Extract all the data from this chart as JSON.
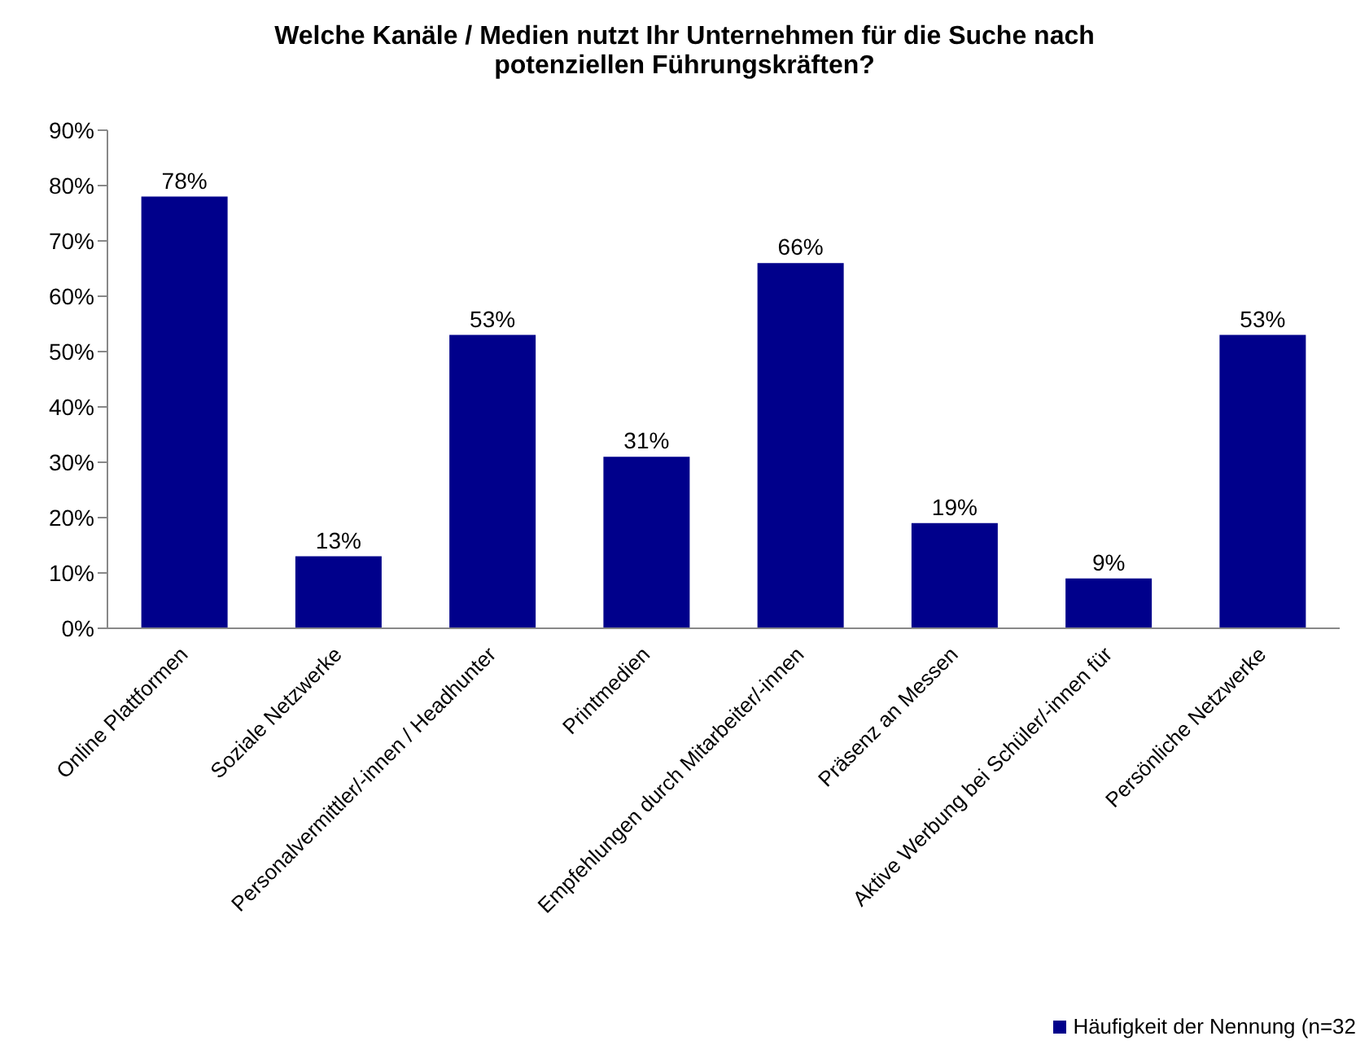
{
  "chart_data": {
    "type": "bar",
    "title": "Welche Kanäle / Medien nutzt Ihr Unternehmen für die Suche nach potenziellen Führungskräften?",
    "categories": [
      "Online Plattformen",
      "Soziale Netzwerke",
      "Personalvermittler/-innen / Headhunter",
      "Printmedien",
      "Empfehlungen durch Mitarbeiter/-innen",
      "Präsenz an Messen",
      "Aktive Werbung bei Schüler/-innen für",
      "Persönliche Netzwerke"
    ],
    "series": [
      {
        "name": "Häufigkeit der Nennung (n=32",
        "color": "#00008b",
        "values": [
          78,
          13,
          53,
          31,
          66,
          19,
          9,
          53
        ],
        "value_labels": [
          "78%",
          "13%",
          "53%",
          "31%",
          "66%",
          "19%",
          "9%",
          "53%"
        ]
      }
    ],
    "ylim": [
      0,
      90
    ],
    "yticks": [
      {
        "value": 0,
        "label": "0%"
      },
      {
        "value": 10,
        "label": "10%"
      },
      {
        "value": 20,
        "label": "20%"
      },
      {
        "value": 30,
        "label": "30%"
      },
      {
        "value": 40,
        "label": "40%"
      },
      {
        "value": 50,
        "label": "50%"
      },
      {
        "value": 60,
        "label": "60%"
      },
      {
        "value": 70,
        "label": "70%"
      },
      {
        "value": 80,
        "label": "80%"
      },
      {
        "value": 90,
        "label": "90%"
      }
    ],
    "grid": false,
    "legend": "bottom right"
  }
}
